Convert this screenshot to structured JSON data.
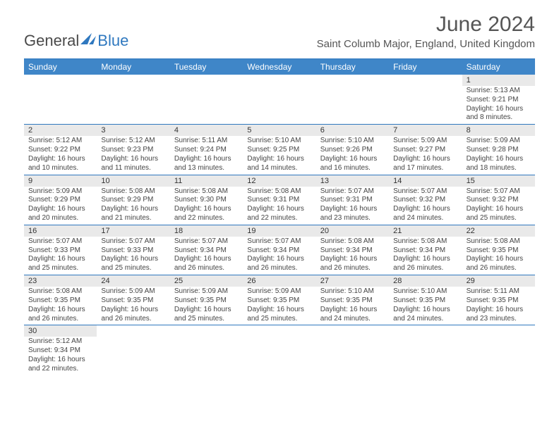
{
  "logo": {
    "part1": "General",
    "part2": "Blue",
    "sail_fill": "#2f78bf"
  },
  "title": {
    "month": "June 2024",
    "location": "Saint Columb Major, England, United Kingdom"
  },
  "colors": {
    "header_blue": "#3f86c8",
    "rule_blue": "#2f78bf",
    "daynum_bg": "#e9e9e9",
    "text": "#444444"
  },
  "days_of_week": [
    "Sunday",
    "Monday",
    "Tuesday",
    "Wednesday",
    "Thursday",
    "Friday",
    "Saturday"
  ],
  "weeks": [
    [
      null,
      null,
      null,
      null,
      null,
      null,
      {
        "n": "1",
        "sunrise": "Sunrise: 5:13 AM",
        "sunset": "Sunset: 9:21 PM",
        "daylight": "Daylight: 16 hours and 8 minutes."
      }
    ],
    [
      {
        "n": "2",
        "sunrise": "Sunrise: 5:12 AM",
        "sunset": "Sunset: 9:22 PM",
        "daylight": "Daylight: 16 hours and 10 minutes."
      },
      {
        "n": "3",
        "sunrise": "Sunrise: 5:12 AM",
        "sunset": "Sunset: 9:23 PM",
        "daylight": "Daylight: 16 hours and 11 minutes."
      },
      {
        "n": "4",
        "sunrise": "Sunrise: 5:11 AM",
        "sunset": "Sunset: 9:24 PM",
        "daylight": "Daylight: 16 hours and 13 minutes."
      },
      {
        "n": "5",
        "sunrise": "Sunrise: 5:10 AM",
        "sunset": "Sunset: 9:25 PM",
        "daylight": "Daylight: 16 hours and 14 minutes."
      },
      {
        "n": "6",
        "sunrise": "Sunrise: 5:10 AM",
        "sunset": "Sunset: 9:26 PM",
        "daylight": "Daylight: 16 hours and 16 minutes."
      },
      {
        "n": "7",
        "sunrise": "Sunrise: 5:09 AM",
        "sunset": "Sunset: 9:27 PM",
        "daylight": "Daylight: 16 hours and 17 minutes."
      },
      {
        "n": "8",
        "sunrise": "Sunrise: 5:09 AM",
        "sunset": "Sunset: 9:28 PM",
        "daylight": "Daylight: 16 hours and 18 minutes."
      }
    ],
    [
      {
        "n": "9",
        "sunrise": "Sunrise: 5:09 AM",
        "sunset": "Sunset: 9:29 PM",
        "daylight": "Daylight: 16 hours and 20 minutes."
      },
      {
        "n": "10",
        "sunrise": "Sunrise: 5:08 AM",
        "sunset": "Sunset: 9:29 PM",
        "daylight": "Daylight: 16 hours and 21 minutes."
      },
      {
        "n": "11",
        "sunrise": "Sunrise: 5:08 AM",
        "sunset": "Sunset: 9:30 PM",
        "daylight": "Daylight: 16 hours and 22 minutes."
      },
      {
        "n": "12",
        "sunrise": "Sunrise: 5:08 AM",
        "sunset": "Sunset: 9:31 PM",
        "daylight": "Daylight: 16 hours and 22 minutes."
      },
      {
        "n": "13",
        "sunrise": "Sunrise: 5:07 AM",
        "sunset": "Sunset: 9:31 PM",
        "daylight": "Daylight: 16 hours and 23 minutes."
      },
      {
        "n": "14",
        "sunrise": "Sunrise: 5:07 AM",
        "sunset": "Sunset: 9:32 PM",
        "daylight": "Daylight: 16 hours and 24 minutes."
      },
      {
        "n": "15",
        "sunrise": "Sunrise: 5:07 AM",
        "sunset": "Sunset: 9:32 PM",
        "daylight": "Daylight: 16 hours and 25 minutes."
      }
    ],
    [
      {
        "n": "16",
        "sunrise": "Sunrise: 5:07 AM",
        "sunset": "Sunset: 9:33 PM",
        "daylight": "Daylight: 16 hours and 25 minutes."
      },
      {
        "n": "17",
        "sunrise": "Sunrise: 5:07 AM",
        "sunset": "Sunset: 9:33 PM",
        "daylight": "Daylight: 16 hours and 25 minutes."
      },
      {
        "n": "18",
        "sunrise": "Sunrise: 5:07 AM",
        "sunset": "Sunset: 9:34 PM",
        "daylight": "Daylight: 16 hours and 26 minutes."
      },
      {
        "n": "19",
        "sunrise": "Sunrise: 5:07 AM",
        "sunset": "Sunset: 9:34 PM",
        "daylight": "Daylight: 16 hours and 26 minutes."
      },
      {
        "n": "20",
        "sunrise": "Sunrise: 5:08 AM",
        "sunset": "Sunset: 9:34 PM",
        "daylight": "Daylight: 16 hours and 26 minutes."
      },
      {
        "n": "21",
        "sunrise": "Sunrise: 5:08 AM",
        "sunset": "Sunset: 9:34 PM",
        "daylight": "Daylight: 16 hours and 26 minutes."
      },
      {
        "n": "22",
        "sunrise": "Sunrise: 5:08 AM",
        "sunset": "Sunset: 9:35 PM",
        "daylight": "Daylight: 16 hours and 26 minutes."
      }
    ],
    [
      {
        "n": "23",
        "sunrise": "Sunrise: 5:08 AM",
        "sunset": "Sunset: 9:35 PM",
        "daylight": "Daylight: 16 hours and 26 minutes."
      },
      {
        "n": "24",
        "sunrise": "Sunrise: 5:09 AM",
        "sunset": "Sunset: 9:35 PM",
        "daylight": "Daylight: 16 hours and 26 minutes."
      },
      {
        "n": "25",
        "sunrise": "Sunrise: 5:09 AM",
        "sunset": "Sunset: 9:35 PM",
        "daylight": "Daylight: 16 hours and 25 minutes."
      },
      {
        "n": "26",
        "sunrise": "Sunrise: 5:09 AM",
        "sunset": "Sunset: 9:35 PM",
        "daylight": "Daylight: 16 hours and 25 minutes."
      },
      {
        "n": "27",
        "sunrise": "Sunrise: 5:10 AM",
        "sunset": "Sunset: 9:35 PM",
        "daylight": "Daylight: 16 hours and 24 minutes."
      },
      {
        "n": "28",
        "sunrise": "Sunrise: 5:10 AM",
        "sunset": "Sunset: 9:35 PM",
        "daylight": "Daylight: 16 hours and 24 minutes."
      },
      {
        "n": "29",
        "sunrise": "Sunrise: 5:11 AM",
        "sunset": "Sunset: 9:35 PM",
        "daylight": "Daylight: 16 hours and 23 minutes."
      }
    ],
    [
      {
        "n": "30",
        "sunrise": "Sunrise: 5:12 AM",
        "sunset": "Sunset: 9:34 PM",
        "daylight": "Daylight: 16 hours and 22 minutes."
      },
      null,
      null,
      null,
      null,
      null,
      null
    ]
  ]
}
